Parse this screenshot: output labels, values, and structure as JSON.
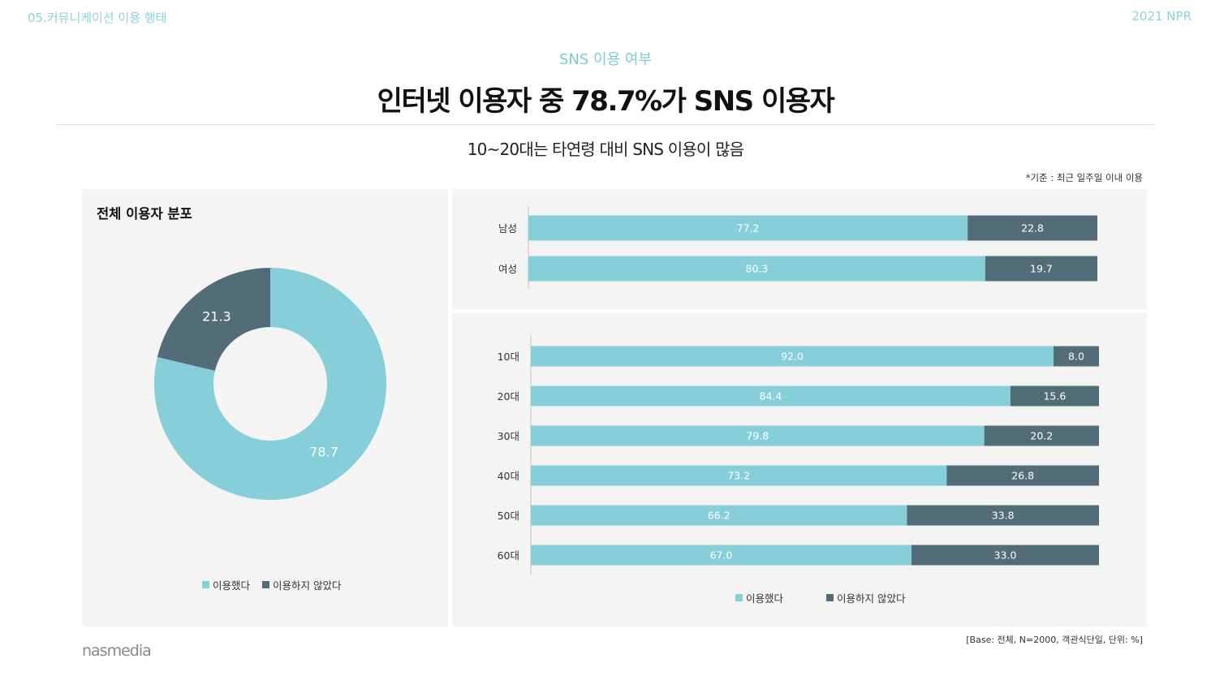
{
  "header": {
    "section": "05.커뮤니케이션 이용 행태",
    "year": "2021 NPR",
    "kicker": "SNS 이용 여부",
    "headline": "인터넷 이용자 중 78.7%가 SNS 이용자",
    "subhead": "10~20대는 타연령 대비 SNS 이용이 많음",
    "basis_note": "*기준 : 최근 일주일 이내 이용"
  },
  "colors": {
    "used": "#86cfd9",
    "not_used": "#536d78",
    "panel": "#f4f4f4",
    "accent": "#7ccbd6"
  },
  "legend": {
    "used": "이용했다",
    "not_used": "이용하지 않았다"
  },
  "footnote": "[Base: 전체, N=2000, 객관식단일, 단위: %]",
  "brand": "nasmedia",
  "chart_data": [
    {
      "type": "pie",
      "title": "전체 이용자 분포",
      "donut": true,
      "slices": [
        {
          "label": "이용했다",
          "value": 78.7
        },
        {
          "label": "이용하지 않았다",
          "value": 21.3
        }
      ],
      "legend": "bottom"
    },
    {
      "type": "bar",
      "orientation": "horizontal",
      "stacked": true,
      "categories": [
        "남성",
        "여성"
      ],
      "series": [
        {
          "name": "이용했다",
          "values": [
            77.2,
            80.3
          ]
        },
        {
          "name": "이용하지 않았다",
          "values": [
            22.8,
            19.7
          ]
        }
      ],
      "xlim": [
        0,
        100
      ]
    },
    {
      "type": "bar",
      "orientation": "horizontal",
      "stacked": true,
      "categories": [
        "10대",
        "20대",
        "30대",
        "40대",
        "50대",
        "60대"
      ],
      "series": [
        {
          "name": "이용했다",
          "values": [
            92.0,
            84.4,
            79.8,
            73.2,
            66.2,
            67.0
          ]
        },
        {
          "name": "이용하지 않았다",
          "values": [
            8.0,
            15.6,
            20.2,
            26.8,
            33.8,
            33.0
          ]
        }
      ],
      "xlim": [
        0,
        100
      ],
      "legend": "bottom"
    }
  ]
}
